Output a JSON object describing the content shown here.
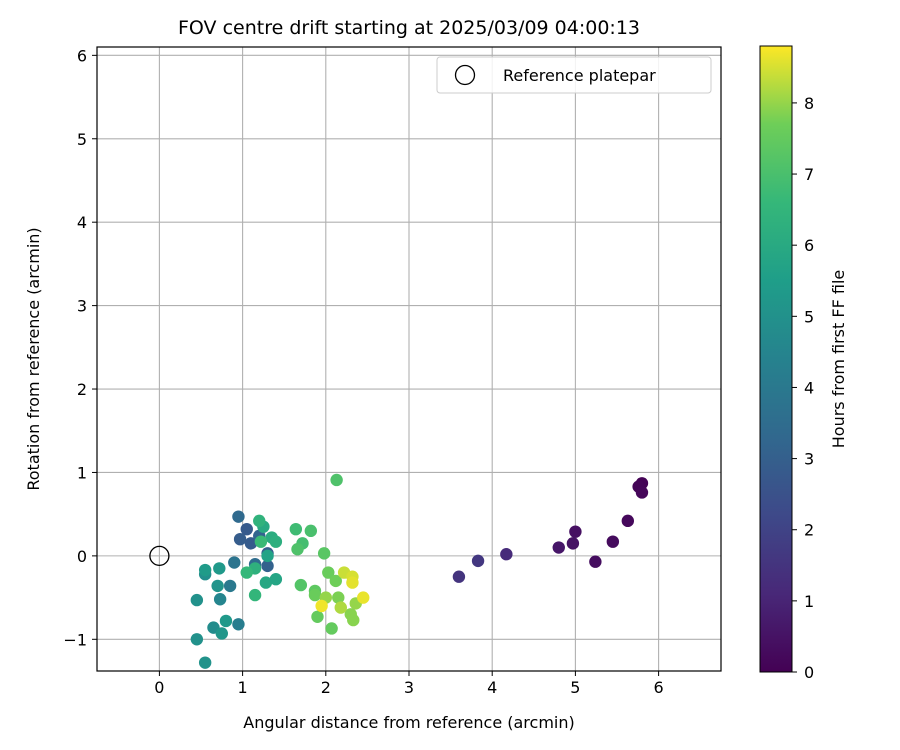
{
  "chart_data": {
    "type": "scatter",
    "title": "FOV centre drift starting at 2025/03/09 04:00:13",
    "xlabel": "Angular distance from reference (arcmin)",
    "ylabel": "Rotation from reference (arcmin)",
    "xlim": [
      -0.75,
      6.75
    ],
    "ylim": [
      -1.38,
      6.1
    ],
    "xticks": [
      0,
      1,
      2,
      3,
      4,
      5,
      6
    ],
    "xtick_labels": [
      "0",
      "1",
      "2",
      "3",
      "4",
      "5",
      "6"
    ],
    "yticks": [
      -1,
      0,
      1,
      2,
      3,
      4,
      5,
      6
    ],
    "ytick_labels": [
      "−1",
      "0",
      "1",
      "2",
      "3",
      "4",
      "5",
      "6"
    ],
    "grid": true,
    "legend": {
      "location": "upper right",
      "entries": [
        {
          "label": "Reference platepar",
          "marker": "open-circle"
        }
      ]
    },
    "reference_point": {
      "x": 0.0,
      "y": 0.0
    },
    "colorbar": {
      "label": "Hours from first FF file",
      "colormap": "viridis",
      "range": [
        0,
        8.8
      ],
      "ticks": [
        0,
        1,
        2,
        3,
        4,
        5,
        6,
        7,
        8
      ],
      "tick_labels": [
        "0",
        "1",
        "2",
        "3",
        "4",
        "5",
        "6",
        "7",
        "8"
      ]
    },
    "points": [
      {
        "x": 5.8,
        "y": 0.87,
        "hours": 0.05
      },
      {
        "x": 5.76,
        "y": 0.83,
        "hours": 0.1
      },
      {
        "x": 5.8,
        "y": 0.76,
        "hours": 0.15
      },
      {
        "x": 5.63,
        "y": 0.42,
        "hours": 0.2
      },
      {
        "x": 5.45,
        "y": 0.17,
        "hours": 0.28
      },
      {
        "x": 5.24,
        "y": -0.07,
        "hours": 0.35
      },
      {
        "x": 5.0,
        "y": 0.29,
        "hours": 0.42
      },
      {
        "x": 4.97,
        "y": 0.15,
        "hours": 0.5
      },
      {
        "x": 4.8,
        "y": 0.1,
        "hours": 0.6
      },
      {
        "x": 4.17,
        "y": 0.02,
        "hours": 1.2
      },
      {
        "x": 3.83,
        "y": -0.06,
        "hours": 1.6
      },
      {
        "x": 3.6,
        "y": -0.25,
        "hours": 1.5
      },
      {
        "x": 1.05,
        "y": 0.32,
        "hours": 2.8
      },
      {
        "x": 0.97,
        "y": 0.2,
        "hours": 2.9
      },
      {
        "x": 1.1,
        "y": 0.15,
        "hours": 2.85
      },
      {
        "x": 1.3,
        "y": 0.03,
        "hours": 3.0
      },
      {
        "x": 1.3,
        "y": -0.12,
        "hours": 3.1
      },
      {
        "x": 0.95,
        "y": 0.47,
        "hours": 3.4
      },
      {
        "x": 1.2,
        "y": 0.24,
        "hours": 3.2
      },
      {
        "x": 1.15,
        "y": -0.1,
        "hours": 3.5
      },
      {
        "x": 0.9,
        "y": -0.08,
        "hours": 3.8
      },
      {
        "x": 0.85,
        "y": -0.36,
        "hours": 4.0
      },
      {
        "x": 0.95,
        "y": -0.82,
        "hours": 4.2
      },
      {
        "x": 0.73,
        "y": -0.52,
        "hours": 4.5
      },
      {
        "x": 0.65,
        "y": -0.86,
        "hours": 4.8
      },
      {
        "x": 0.55,
        "y": -0.22,
        "hours": 4.9
      },
      {
        "x": 0.45,
        "y": -0.53,
        "hours": 5.0
      },
      {
        "x": 0.7,
        "y": -0.36,
        "hours": 5.1
      },
      {
        "x": 0.75,
        "y": -0.93,
        "hours": 5.2
      },
      {
        "x": 0.45,
        "y": -1.0,
        "hours": 5.0
      },
      {
        "x": 0.55,
        "y": -1.28,
        "hours": 5.05
      },
      {
        "x": 0.72,
        "y": -0.15,
        "hours": 5.3
      },
      {
        "x": 0.55,
        "y": -0.17,
        "hours": 5.4
      },
      {
        "x": 0.8,
        "y": -0.78,
        "hours": 5.3
      },
      {
        "x": 1.3,
        "y": 0.0,
        "hours": 5.7
      },
      {
        "x": 1.28,
        "y": -0.32,
        "hours": 5.9
      },
      {
        "x": 1.4,
        "y": -0.28,
        "hours": 5.8
      },
      {
        "x": 1.25,
        "y": 0.35,
        "hours": 6.0
      },
      {
        "x": 1.35,
        "y": 0.22,
        "hours": 6.1
      },
      {
        "x": 1.4,
        "y": 0.17,
        "hours": 6.2
      },
      {
        "x": 1.15,
        "y": -0.15,
        "hours": 6.3
      },
      {
        "x": 1.2,
        "y": 0.42,
        "hours": 6.4
      },
      {
        "x": 1.15,
        "y": -0.47,
        "hours": 6.5
      },
      {
        "x": 1.05,
        "y": -0.2,
        "hours": 6.6
      },
      {
        "x": 1.22,
        "y": 0.17,
        "hours": 6.7
      },
      {
        "x": 1.64,
        "y": 0.32,
        "hours": 6.8
      },
      {
        "x": 1.72,
        "y": 0.15,
        "hours": 6.9
      },
      {
        "x": 1.82,
        "y": 0.3,
        "hours": 7.0
      },
      {
        "x": 1.66,
        "y": 0.08,
        "hours": 7.1
      },
      {
        "x": 1.7,
        "y": -0.35,
        "hours": 7.2
      },
      {
        "x": 1.98,
        "y": 0.03,
        "hours": 7.3
      },
      {
        "x": 2.13,
        "y": 0.91,
        "hours": 7.1
      },
      {
        "x": 1.87,
        "y": -0.42,
        "hours": 7.4
      },
      {
        "x": 1.9,
        "y": -0.73,
        "hours": 7.5
      },
      {
        "x": 1.87,
        "y": -0.47,
        "hours": 7.6
      },
      {
        "x": 2.03,
        "y": -0.2,
        "hours": 7.6
      },
      {
        "x": 2.07,
        "y": -0.87,
        "hours": 7.5
      },
      {
        "x": 2.12,
        "y": -0.3,
        "hours": 7.7
      },
      {
        "x": 2.15,
        "y": -0.5,
        "hours": 7.8
      },
      {
        "x": 2.3,
        "y": -0.7,
        "hours": 7.9
      },
      {
        "x": 2.33,
        "y": -0.77,
        "hours": 7.9
      },
      {
        "x": 2.36,
        "y": -0.57,
        "hours": 8.0
      },
      {
        "x": 2.0,
        "y": -0.5,
        "hours": 8.0
      },
      {
        "x": 2.18,
        "y": -0.62,
        "hours": 8.2
      },
      {
        "x": 2.22,
        "y": -0.2,
        "hours": 8.4
      },
      {
        "x": 2.32,
        "y": -0.25,
        "hours": 8.5
      },
      {
        "x": 2.32,
        "y": -0.32,
        "hours": 8.6
      },
      {
        "x": 2.45,
        "y": -0.5,
        "hours": 8.65
      },
      {
        "x": 1.95,
        "y": -0.6,
        "hours": 8.7
      }
    ]
  }
}
